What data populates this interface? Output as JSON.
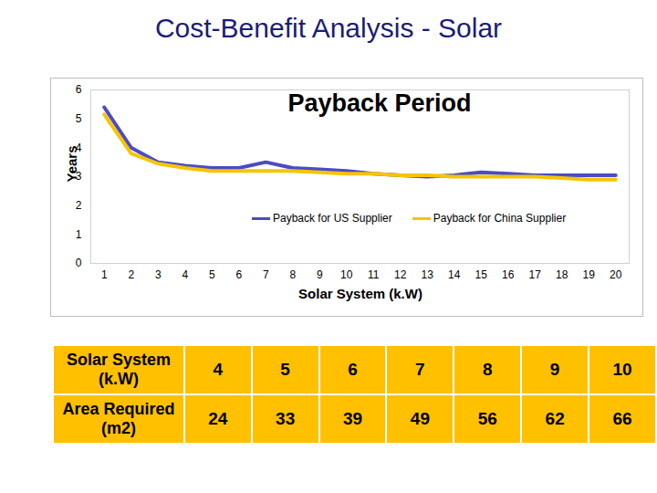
{
  "heading": "Cost-Benefit Analysis - Solar",
  "chart_data": {
    "type": "line",
    "title": "Payback Period",
    "x_label": "Solar System (k.W)",
    "y_label": "Years",
    "x": [
      1,
      2,
      3,
      4,
      5,
      6,
      7,
      8,
      9,
      10,
      11,
      12,
      13,
      14,
      15,
      16,
      17,
      18,
      19,
      20
    ],
    "series": [
      {
        "name": "Payback for US Supplier",
        "color": "#4b4bc8",
        "values": [
          5.4,
          4.0,
          3.5,
          3.38,
          3.3,
          3.3,
          3.5,
          3.3,
          3.25,
          3.2,
          3.1,
          3.05,
          3.0,
          3.05,
          3.15,
          3.1,
          3.05,
          3.05,
          3.05,
          3.05
        ]
      },
      {
        "name": "Payback for China Supplier",
        "color": "#f5c400",
        "values": [
          5.15,
          3.8,
          3.45,
          3.3,
          3.2,
          3.2,
          3.2,
          3.2,
          3.15,
          3.1,
          3.1,
          3.05,
          3.05,
          3.0,
          3.0,
          3.0,
          3.0,
          2.95,
          2.9,
          2.9
        ]
      }
    ],
    "xlim": [
      0.5,
      20.5
    ],
    "xticks": [
      1,
      2,
      3,
      4,
      5,
      6,
      7,
      8,
      9,
      10,
      11,
      12,
      13,
      14,
      15,
      16,
      17,
      18,
      19,
      20
    ],
    "ylim": [
      0,
      6
    ],
    "yticks": [
      0,
      1,
      2,
      3,
      4,
      5,
      6
    ],
    "grid": false,
    "legend": "bottom"
  },
  "table": {
    "rows": [
      {
        "label": "Solar System (k.W)",
        "values": [
          4,
          5,
          6,
          7,
          8,
          9,
          10
        ]
      },
      {
        "label": "Area Required (m2)",
        "values": [
          24,
          33,
          39,
          49,
          56,
          62,
          66
        ]
      }
    ]
  }
}
